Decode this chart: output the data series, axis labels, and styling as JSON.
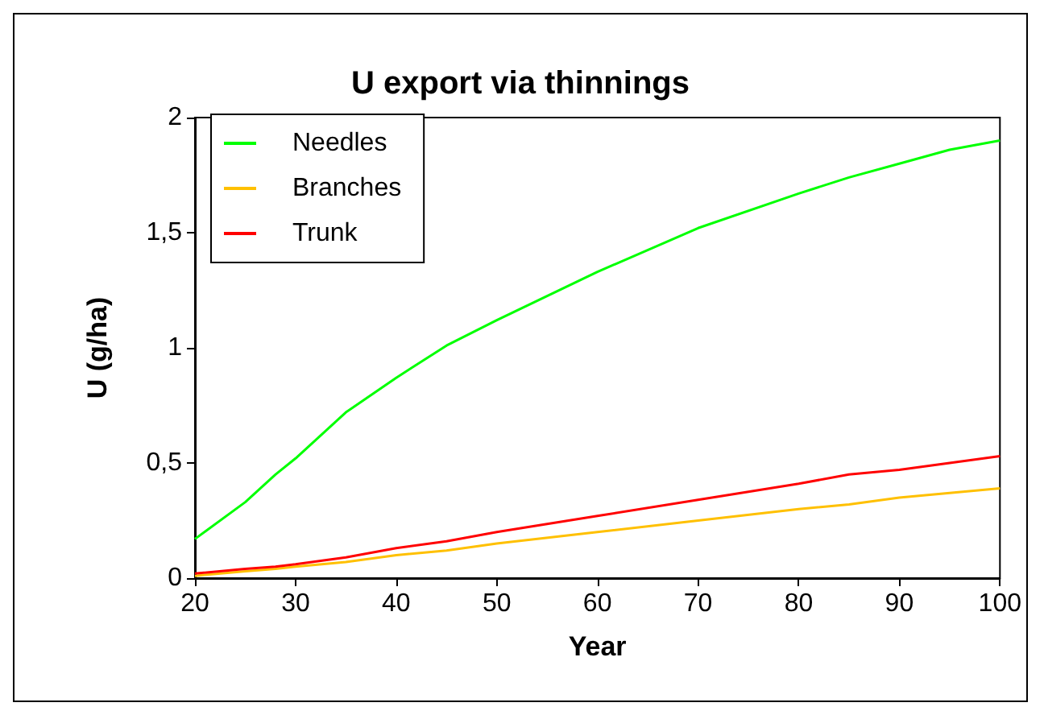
{
  "chart_data": {
    "type": "line",
    "title": "U export via thinnings",
    "xlabel": "Year",
    "ylabel": "U (g/ha)",
    "x": [
      20,
      25,
      28,
      30,
      35,
      40,
      45,
      50,
      60,
      70,
      80,
      85,
      90,
      95,
      100
    ],
    "series": [
      {
        "name": "Needles",
        "color": "#00ff00",
        "values": [
          0.17,
          0.33,
          0.45,
          0.52,
          0.72,
          0.87,
          1.01,
          1.12,
          1.33,
          1.52,
          1.67,
          1.74,
          1.8,
          1.86,
          1.9
        ]
      },
      {
        "name": "Branches",
        "color": "#ffc000",
        "values": [
          0.01,
          0.03,
          0.04,
          0.05,
          0.07,
          0.1,
          0.12,
          0.15,
          0.2,
          0.25,
          0.3,
          0.32,
          0.35,
          0.37,
          0.39
        ]
      },
      {
        "name": "Trunk",
        "color": "#ff0000",
        "values": [
          0.02,
          0.04,
          0.05,
          0.06,
          0.09,
          0.13,
          0.16,
          0.2,
          0.27,
          0.34,
          0.41,
          0.45,
          0.47,
          0.5,
          0.53
        ]
      }
    ],
    "xlim": [
      20,
      100
    ],
    "xticks": [
      20,
      30,
      40,
      50,
      60,
      70,
      80,
      90,
      100
    ],
    "ylim": [
      0,
      2
    ],
    "yticks": [
      0,
      {
        "value": 0.5,
        "label": "0,5"
      },
      1,
      {
        "value": 1.5,
        "label": "1,5"
      },
      2
    ],
    "grid": false,
    "legend": "top left",
    "marker": "none",
    "line_style": "solid"
  }
}
